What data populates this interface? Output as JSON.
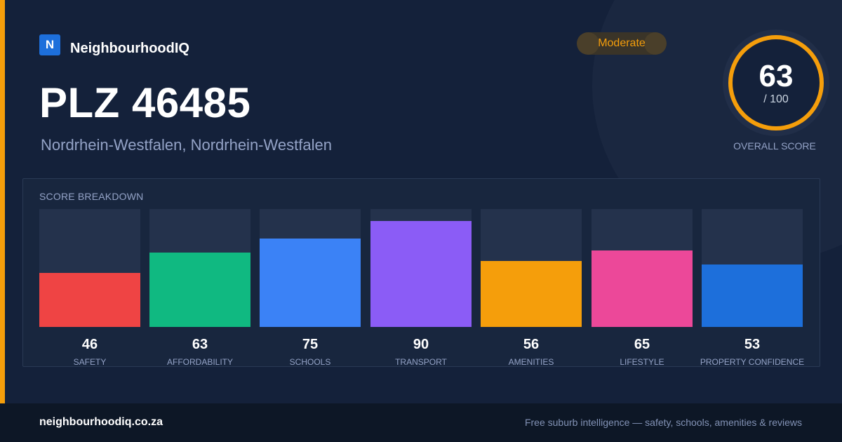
{
  "brand": {
    "logo_letter": "N",
    "name": "NeighbourhoodIQ"
  },
  "badge": {
    "label": "Moderate",
    "color": "#f59e0b"
  },
  "title": "PLZ 46485",
  "subtitle": "Nordrhein-Westfalen, Nordrhein-Westfalen",
  "overall": {
    "score": "63",
    "max": "/ 100",
    "caption": "OVERALL SCORE",
    "color": "#f59e0b"
  },
  "breakdown": {
    "title": "SCORE BREAKDOWN",
    "items": [
      {
        "label": "SAFETY",
        "value": "46",
        "color": "#ef4444"
      },
      {
        "label": "AFFORDABILITY",
        "value": "63",
        "color": "#10b981"
      },
      {
        "label": "SCHOOLS",
        "value": "75",
        "color": "#3b82f6"
      },
      {
        "label": "TRANSPORT",
        "value": "90",
        "color": "#8b5cf6"
      },
      {
        "label": "AMENITIES",
        "value": "56",
        "color": "#f59e0b"
      },
      {
        "label": "LIFESTYLE",
        "value": "65",
        "color": "#ec4899"
      },
      {
        "label": "PROPERTY CONFIDENCE",
        "value": "53",
        "color": "#1d6fdb"
      }
    ]
  },
  "footer": {
    "site": "neighbourhoodiq.co.za",
    "tagline": "Free suburb intelligence — safety, schools, amenities & reviews"
  }
}
